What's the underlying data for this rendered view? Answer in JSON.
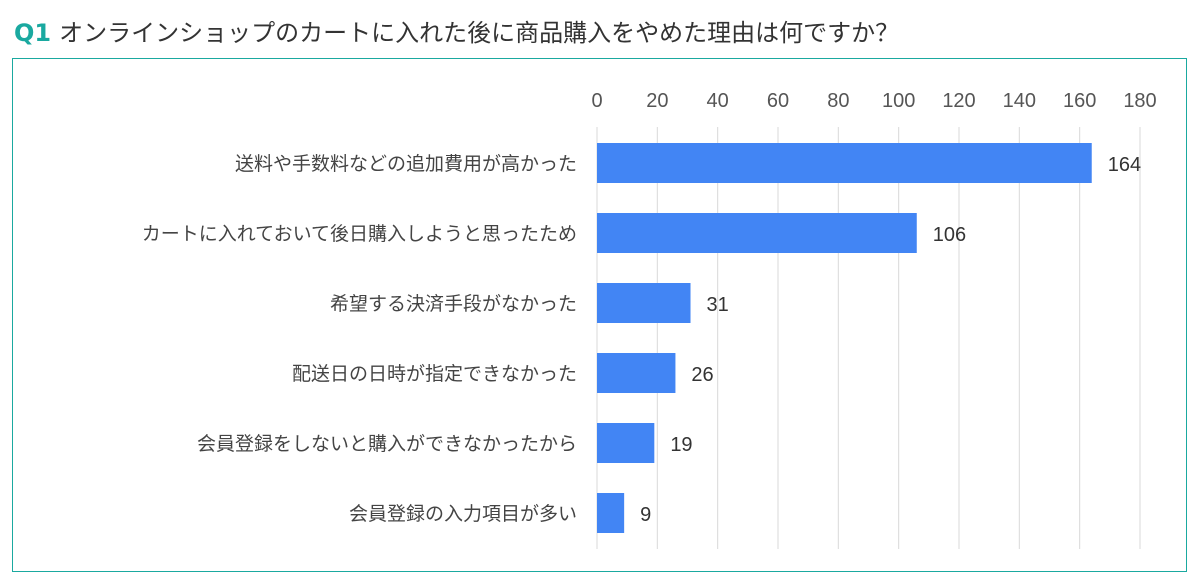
{
  "question": {
    "number": "Q1",
    "text": "オンラインショップのカートに入れた後に商品購入をやめた理由は何ですか？"
  },
  "colors": {
    "accent": "#1aa9a0",
    "bar": "#4285f4",
    "grid": "#d9d9d9"
  },
  "chart_data": {
    "type": "bar",
    "orientation": "horizontal",
    "categories": [
      "送料や手数料などの追加費用が高かった",
      "カートに入れておいて後日購入しようと思ったため",
      "希望する決済手段がなかった",
      "配送日の日時が指定できなかった",
      "会員登録をしないと購入ができなかったから",
      "会員登録の入力項目が多い"
    ],
    "values": [
      164,
      106,
      31,
      26,
      19,
      9
    ],
    "xlim": [
      0,
      180
    ],
    "x_ticks": [
      0,
      20,
      40,
      60,
      80,
      100,
      120,
      140,
      160,
      180
    ],
    "grid": true,
    "axis_position": "top",
    "legend": "none",
    "title": "",
    "xlabel": "",
    "ylabel": ""
  }
}
